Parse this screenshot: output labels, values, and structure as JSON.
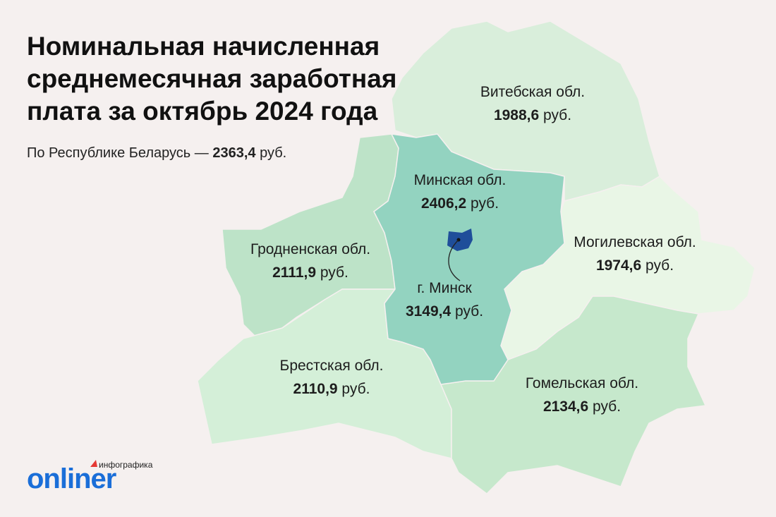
{
  "header": {
    "title_lines": [
      "Номинальная начисленная",
      "среднемесячная заработная",
      "плата за октябрь 2024 года"
    ],
    "subtitle": {
      "prefix": "По Республике Беларусь — ",
      "value": "2363,4",
      "unit": " руб."
    }
  },
  "regions": [
    {
      "name": "Витебская обл.",
      "value": "1988,6",
      "unit": " руб."
    },
    {
      "name": "Минская обл.",
      "value": "2406,2",
      "unit": " руб."
    },
    {
      "name": "Гродненская обл.",
      "value": "2111,9",
      "unit": " руб."
    },
    {
      "name": "г. Минск",
      "value": "3149,4",
      "unit": " руб."
    },
    {
      "name": "Могилевская обл.",
      "value": "1974,6",
      "unit": " руб."
    },
    {
      "name": "Брестская обл.",
      "value": "2110,9",
      "unit": " руб."
    },
    {
      "name": "Гомельская обл.",
      "value": "2134,6",
      "unit": " руб."
    }
  ],
  "logo": {
    "tag": "инфографика",
    "brand": "onliner"
  }
}
